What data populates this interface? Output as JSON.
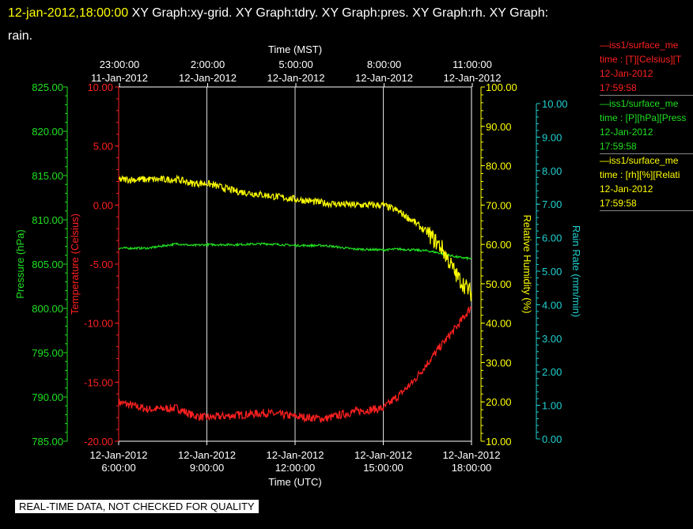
{
  "header": {
    "datetime": "12-jan-2012,18:00:00",
    "graphs_line1": " XY Graph:xy-grid.  XY Graph:tdry.  XY Graph:pres.  XY Graph:rh.  XY Graph:",
    "graphs_line2": "rain."
  },
  "legend": [
    {
      "line1": "—iss1/surface_me",
      "line2": "time : [T][Celsius][T",
      "line3": "12-Jan-2012",
      "line4": "17:59:58",
      "color": "#ff2020"
    },
    {
      "line1": "—iss1/surface_me",
      "line2": "time : [P][hPa][Press",
      "line3": "12-Jan-2012",
      "line4": "17:59:58",
      "color": "#20e020"
    },
    {
      "line1": "—iss1/surface_me",
      "line2": "time : [rh][%][Relati",
      "line3": "12-Jan-2012",
      "line4": "17:59:58",
      "color": "#ffff00"
    }
  ],
  "quality_note": "REAL-TIME DATA, NOT CHECKED FOR QUALITY",
  "chart_data": {
    "type": "line",
    "top_axis": {
      "title": "Time (MST)",
      "ticks": [
        {
          "time": "23:00:00",
          "date": "11-Jan-2012"
        },
        {
          "time": "2:00:00",
          "date": "12-Jan-2012"
        },
        {
          "time": "5:00:00",
          "date": "12-Jan-2012"
        },
        {
          "time": "8:00:00",
          "date": "12-Jan-2012"
        },
        {
          "time": "11:00:00",
          "date": "12-Jan-2012"
        }
      ]
    },
    "bottom_axis": {
      "title": "Time (UTC)",
      "xlim": [
        "12-Jan-2012 06:00:00",
        "12-Jan-2012 18:00:00"
      ],
      "ticks": [
        {
          "date": "12-Jan-2012",
          "time": "6:00:00"
        },
        {
          "date": "12-Jan-2012",
          "time": "9:00:00"
        },
        {
          "date": "12-Jan-2012",
          "time": "12:00:00"
        },
        {
          "date": "12-Jan-2012",
          "time": "15:00:00"
        },
        {
          "date": "12-Jan-2012",
          "time": "18:00:00"
        }
      ]
    },
    "y_axes": {
      "pressure": {
        "label": "Pressure (hPa)",
        "color": "#20e020",
        "ylim": [
          785,
          825
        ],
        "ticks": [
          "785.00",
          "790.00",
          "795.00",
          "800.00",
          "805.00",
          "810.00",
          "815.00",
          "820.00",
          "825.00"
        ]
      },
      "temperature": {
        "label": "Temperature (Celsius)",
        "color": "#ff2020",
        "ylim": [
          -20,
          10
        ],
        "ticks": [
          "-20.00",
          "-15.00",
          "-10.00",
          "-5.00",
          "0.00",
          "5.00",
          "10.00"
        ]
      },
      "humidity": {
        "label": "Relative Humidity (%)",
        "color": "#ffff00",
        "ylim": [
          10,
          100
        ],
        "ticks": [
          "10.00",
          "20.00",
          "30.00",
          "40.00",
          "50.00",
          "60.00",
          "70.00",
          "80.00",
          "90.00",
          "100.00"
        ]
      },
      "rain": {
        "label": "Rain Rate (mm/min)",
        "color": "#20d0d0",
        "ylim": [
          0,
          10.5
        ],
        "ticks": [
          "0.00",
          "1.00",
          "2.00",
          "3.00",
          "4.00",
          "5.00",
          "6.00",
          "7.00",
          "8.00",
          "9.00",
          "10.00"
        ]
      }
    },
    "x_hours": [
      6,
      7,
      8,
      8.5,
      9,
      10,
      11,
      12,
      13,
      14,
      15,
      15.5,
      16,
      16.5,
      17,
      17.5,
      18
    ],
    "series": [
      {
        "axis": "temperature",
        "color": "#ff2020",
        "values": [
          -16.7,
          -17.3,
          -17.2,
          -17.8,
          -18.0,
          -17.8,
          -17.6,
          -17.9,
          -18.1,
          -17.5,
          -17.2,
          -16.2,
          -15.0,
          -13.4,
          -11.8,
          -10.3,
          -8.6
        ]
      },
      {
        "axis": "pressure",
        "color": "#20e020",
        "values": [
          806.8,
          806.8,
          807.3,
          807.1,
          807.2,
          807.2,
          807.3,
          807.1,
          807.1,
          806.7,
          806.6,
          806.7,
          806.6,
          806.5,
          806.2,
          805.8,
          805.6
        ]
      },
      {
        "axis": "humidity",
        "color": "#ffff00",
        "values": [
          76.5,
          76.5,
          76.5,
          75.5,
          75.5,
          73.5,
          72.5,
          71.5,
          70.5,
          70.0,
          70.0,
          68.5,
          66.0,
          63.0,
          59.0,
          52.0,
          47.5
        ]
      }
    ]
  }
}
